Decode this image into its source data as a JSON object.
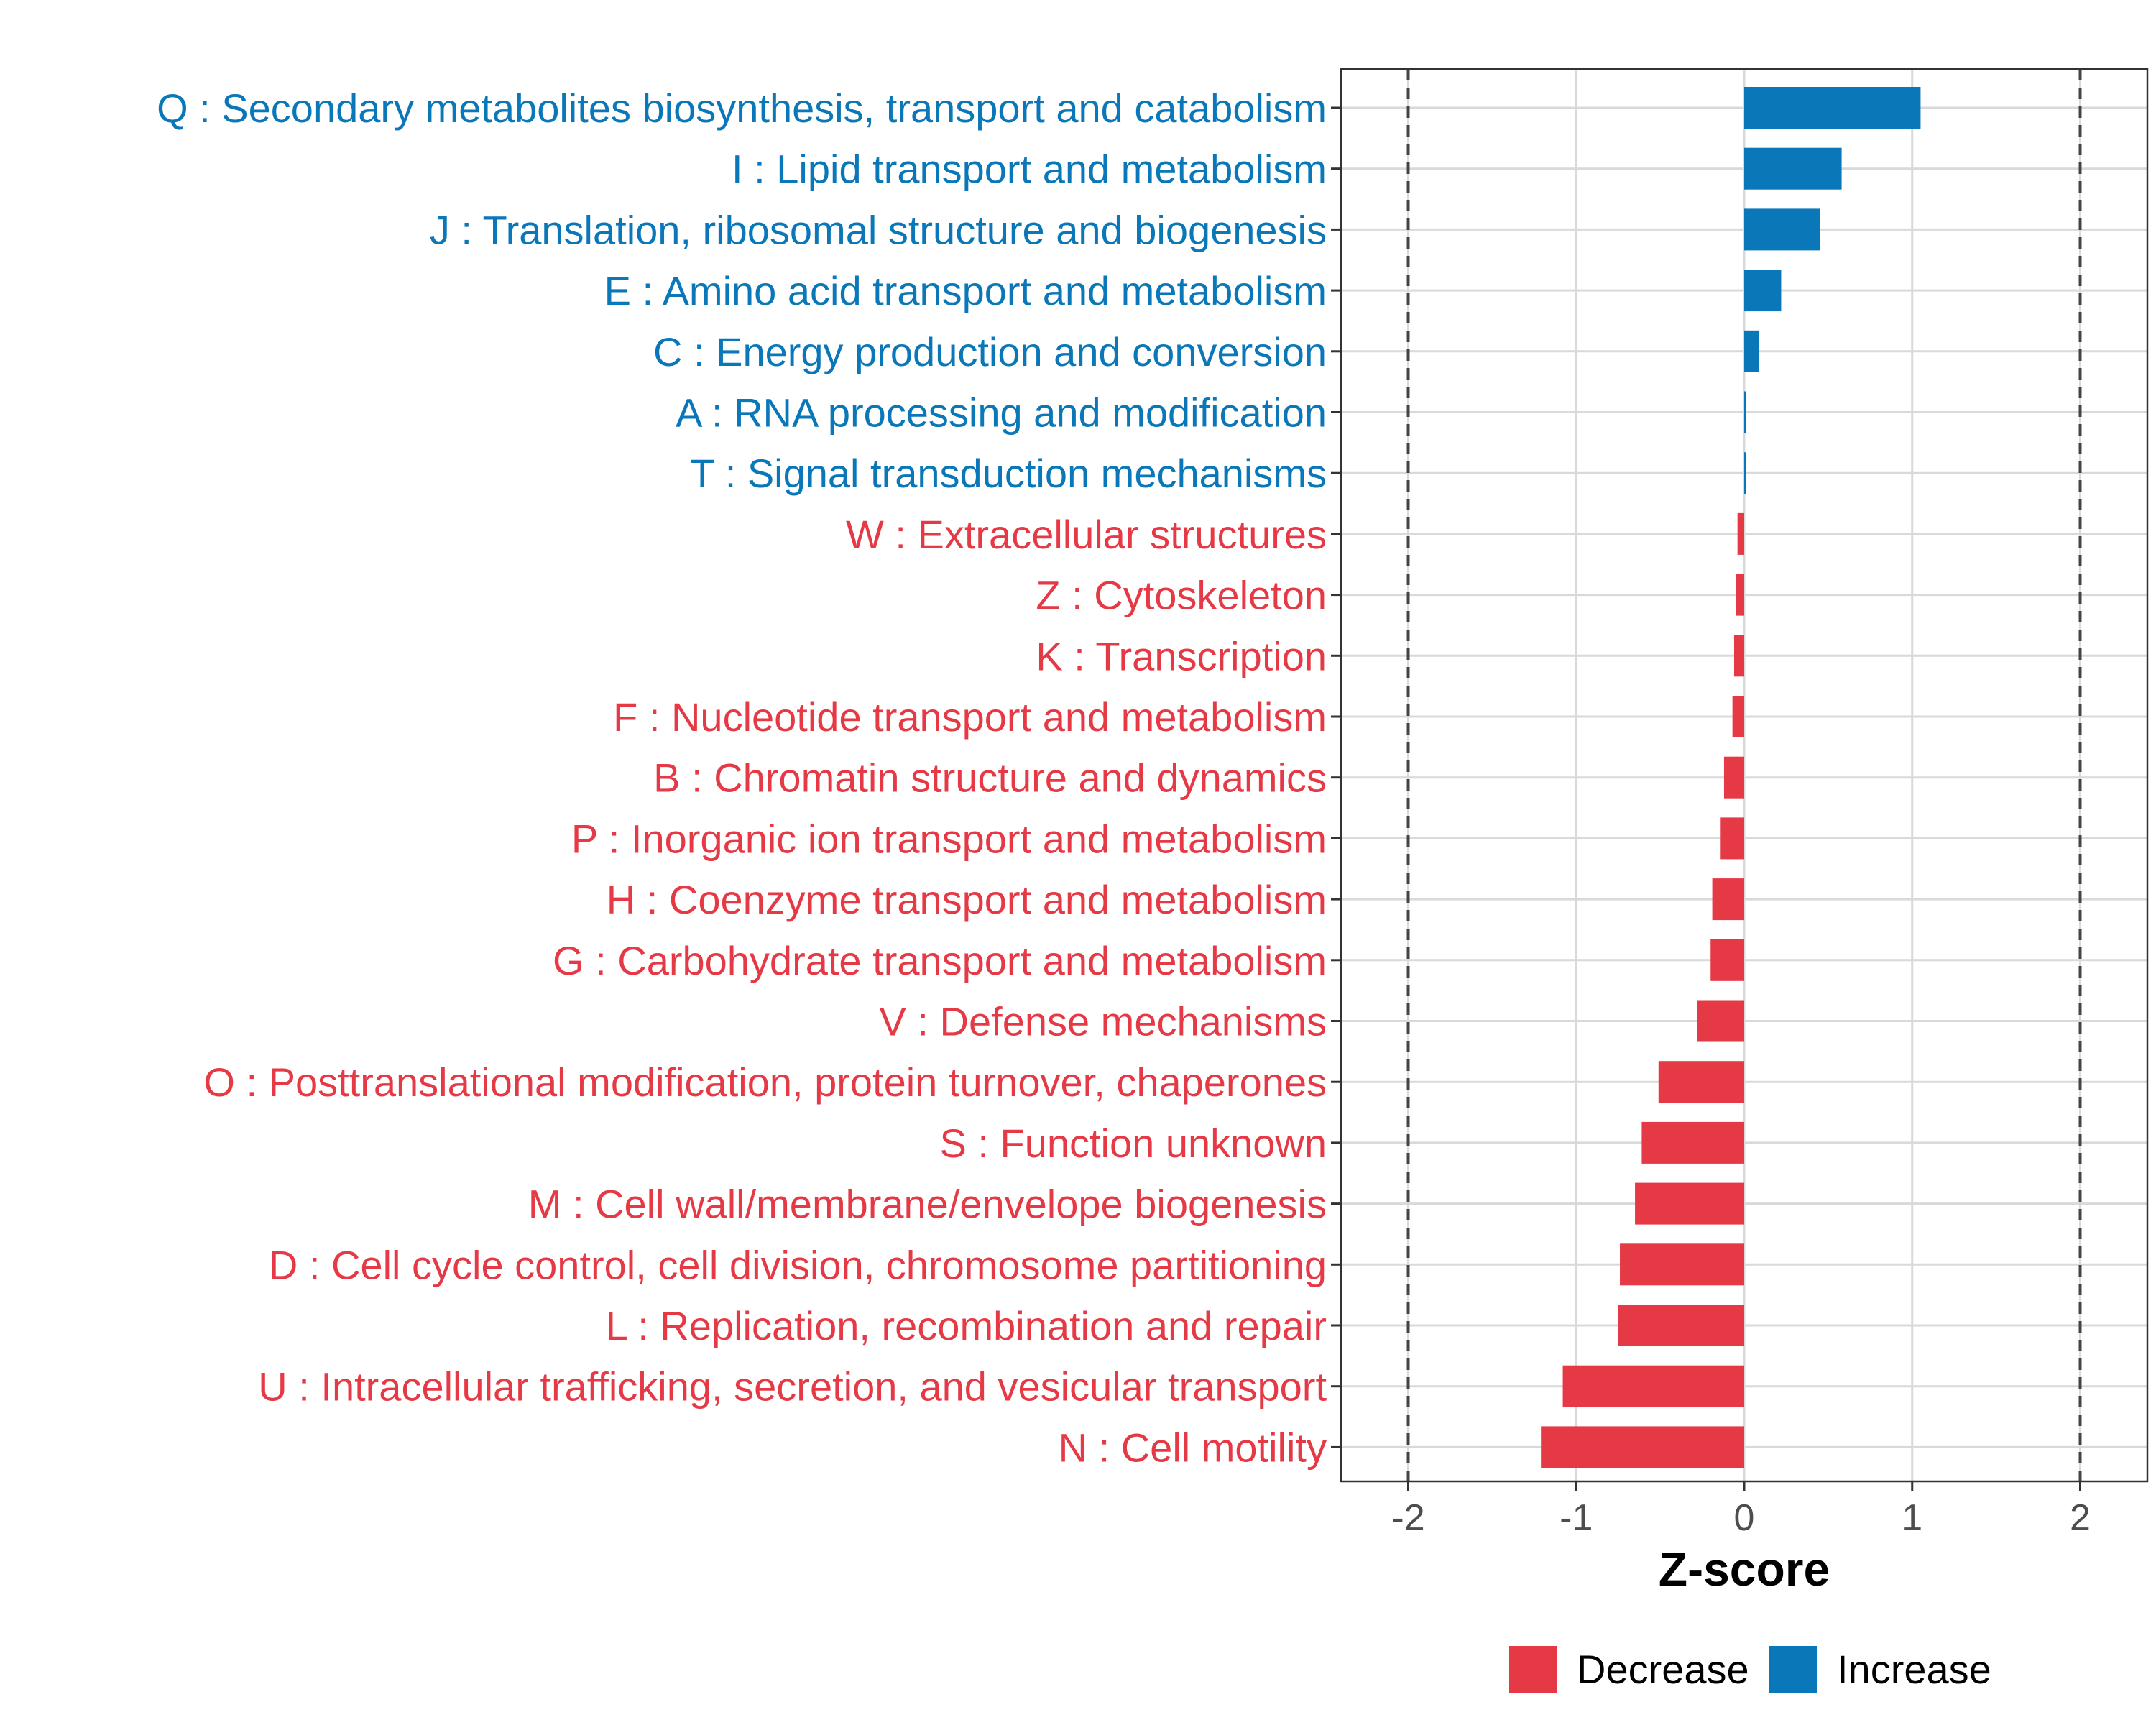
{
  "chart_data": {
    "type": "bar",
    "orientation": "horizontal",
    "xlabel": "Z-score",
    "xlim": [
      -2.4,
      2.4
    ],
    "xticks": [
      -2,
      -1,
      0,
      1,
      2
    ],
    "xtick_labels": [
      "-2",
      "-1",
      "0",
      "1",
      "2"
    ],
    "reference_lines": [
      -2,
      2
    ],
    "grid": true,
    "legend_position": "bottom",
    "colors": {
      "Decrease": "#e63946",
      "Increase": "#0a77b8"
    },
    "legend": [
      {
        "name": "Decrease",
        "color": "#e63946"
      },
      {
        "name": "Increase",
        "color": "#0a77b8"
      }
    ],
    "categories": [
      "Q : Secondary metabolites biosynthesis, transport and catabolism",
      "I : Lipid transport and metabolism",
      "J : Translation, ribosomal structure and biogenesis",
      "E : Amino acid transport and metabolism",
      "C : Energy production and conversion",
      "A : RNA processing and modification",
      "T : Signal transduction mechanisms",
      "W : Extracellular structures",
      "Z : Cytoskeleton",
      "K : Transcription",
      "F : Nucleotide transport and metabolism",
      "B : Chromatin structure and dynamics",
      "P : Inorganic ion transport and metabolism",
      "H : Coenzyme transport and metabolism",
      "G : Carbohydrate transport and metabolism",
      "V : Defense mechanisms",
      "O : Posttranslational modification, protein turnover, chaperones",
      "S : Function unknown",
      "M : Cell wall/membrane/envelope biogenesis",
      "D : Cell cycle control, cell division, chromosome partitioning",
      "L : Replication, recombination and repair",
      "U : Intracellular trafficking, secretion, and vesicular transport",
      "N : Cell motility"
    ],
    "values": [
      1.05,
      0.58,
      0.45,
      0.22,
      0.09,
      0.01,
      0.01,
      -0.04,
      -0.05,
      -0.06,
      -0.07,
      -0.12,
      -0.14,
      -0.19,
      -0.2,
      -0.28,
      -0.51,
      -0.61,
      -0.65,
      -0.74,
      -0.75,
      -1.08,
      -1.21
    ],
    "groups": [
      "Increase",
      "Increase",
      "Increase",
      "Increase",
      "Increase",
      "Increase",
      "Increase",
      "Decrease",
      "Decrease",
      "Decrease",
      "Decrease",
      "Decrease",
      "Decrease",
      "Decrease",
      "Decrease",
      "Decrease",
      "Decrease",
      "Decrease",
      "Decrease",
      "Decrease",
      "Decrease",
      "Decrease",
      "Decrease"
    ]
  }
}
